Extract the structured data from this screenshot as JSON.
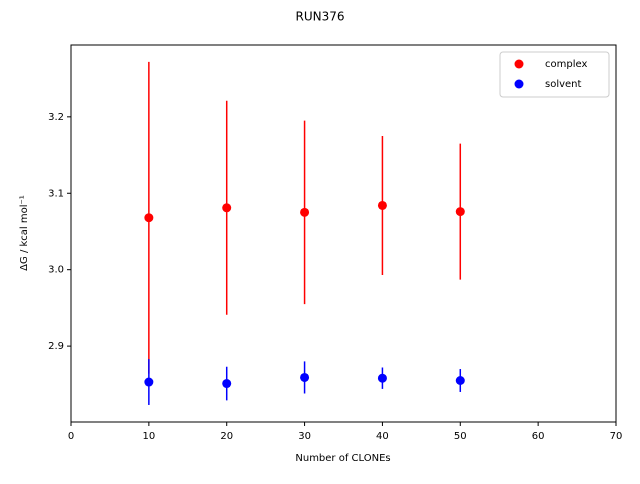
{
  "chart_data": {
    "type": "scatter",
    "title": "RUN376",
    "x_label": "Number of CLONEs",
    "y_label": "ΔG / kcal mol⁻¹",
    "series": [
      {
        "name": "complex",
        "color": "#ff0000",
        "x": [
          10,
          20,
          30,
          40,
          50
        ],
        "values": [
          3.068,
          3.081,
          3.075,
          3.084,
          3.076
        ],
        "errors": [
          0.204,
          0.14,
          0.12,
          0.091,
          0.089
        ]
      },
      {
        "name": "solvent",
        "color": "#0000ff",
        "x": [
          10,
          20,
          30,
          40,
          50
        ],
        "values": [
          2.853,
          2.851,
          2.859,
          2.858,
          2.855
        ],
        "errors": [
          0.03,
          0.022,
          0.021,
          0.014,
          0.015
        ]
      }
    ],
    "xlim": [
      0,
      70
    ],
    "xticks": [
      0,
      10,
      20,
      30,
      40,
      50,
      60,
      70
    ],
    "ylim": [
      2.8007,
      3.294
    ],
    "yticks": [
      2.9,
      {
        "value": 3,
        "label": "3.0"
      },
      3.1,
      3.2
    ],
    "grid": false,
    "legend": "upper right"
  }
}
